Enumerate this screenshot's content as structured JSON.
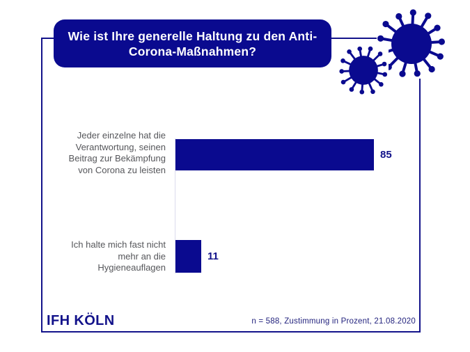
{
  "header": {
    "question": "Wie ist Ihre generelle Haltung zu den Anti-\nCorona-Maßnahmen?"
  },
  "chart_data": {
    "type": "bar",
    "orientation": "horizontal",
    "title": "Wie ist Ihre generelle Haltung zu den Anti-Corona-Maßnahmen?",
    "categories": [
      "Jeder einzelne hat die Verantwortung, seinen Beitrag zur Bekämpfung von Corona zu leisten",
      "Ich halte mich fast nicht mehr an die Hygieneauflagen"
    ],
    "values": [
      85,
      11
    ],
    "unit": "Prozent (Zustimmung)",
    "xlim": [
      0,
      100
    ],
    "grid": false,
    "rows": [
      {
        "label": "Jeder einzelne hat die\nVerantwortung, seinen\nBeitrag zur Bekämpfung\nvon Corona zu leisten",
        "value": 85
      },
      {
        "label": "Ich halte mich fast nicht\nmehr an die\nHygieneauflagen",
        "value": 11
      }
    ]
  },
  "footer": {
    "logo": "IFH KÖLN",
    "note": "n = 588, Zustimmung in Prozent, 21.08.2020"
  },
  "icons": {
    "virus_large": "coronavirus-icon",
    "virus_small": "coronavirus-icon"
  },
  "colors": {
    "accent": "#0A0A8F",
    "border": "#12128A",
    "label_gray": "#55565A",
    "header_text": "#FFFFFF",
    "background": "#FFFFFF"
  }
}
